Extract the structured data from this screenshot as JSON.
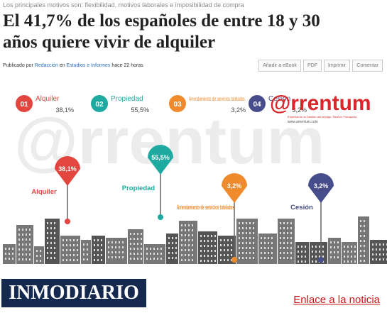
{
  "header": {
    "subtitle": "Los principales motivos son: flexibilidad, motivos laborales e imposibilidad de compra",
    "title_lines": [
      "El 41,7% de los españoles de entre 18 y 30",
      "años quiere vivir de alquiler"
    ]
  },
  "byline": {
    "prefix": "Publicado por",
    "author": "Redacción",
    "in": "en",
    "section": "Estudios e Informes",
    "time": "hace 22 horas"
  },
  "actions": [
    "Añadir a eBook",
    "PDF",
    "Imprimir",
    "Comentar"
  ],
  "infographic": {
    "items": [
      {
        "number": "01",
        "name": "Alquiler",
        "value": "38,1%",
        "color": "#e2463f"
      },
      {
        "number": "02",
        "name": "Propiedad",
        "value": "55,5%",
        "color": "#1eaaa0"
      },
      {
        "number": "03",
        "name": "Arrendamiento de servicios tutelados.",
        "value": "3,2%",
        "color": "#ef8a2d"
      },
      {
        "number": "04",
        "name": "Cesión",
        "value": "3,2%",
        "color": "#474c8a"
      }
    ],
    "logo": {
      "name": "@rrentum",
      "tagline": "Expertos en la Gestión del Impago. Real en Franquicia",
      "url": "www.arrentum.com"
    }
  },
  "footer": {
    "brand": "INMODIARIO",
    "link": "Enlace a la noticia"
  }
}
